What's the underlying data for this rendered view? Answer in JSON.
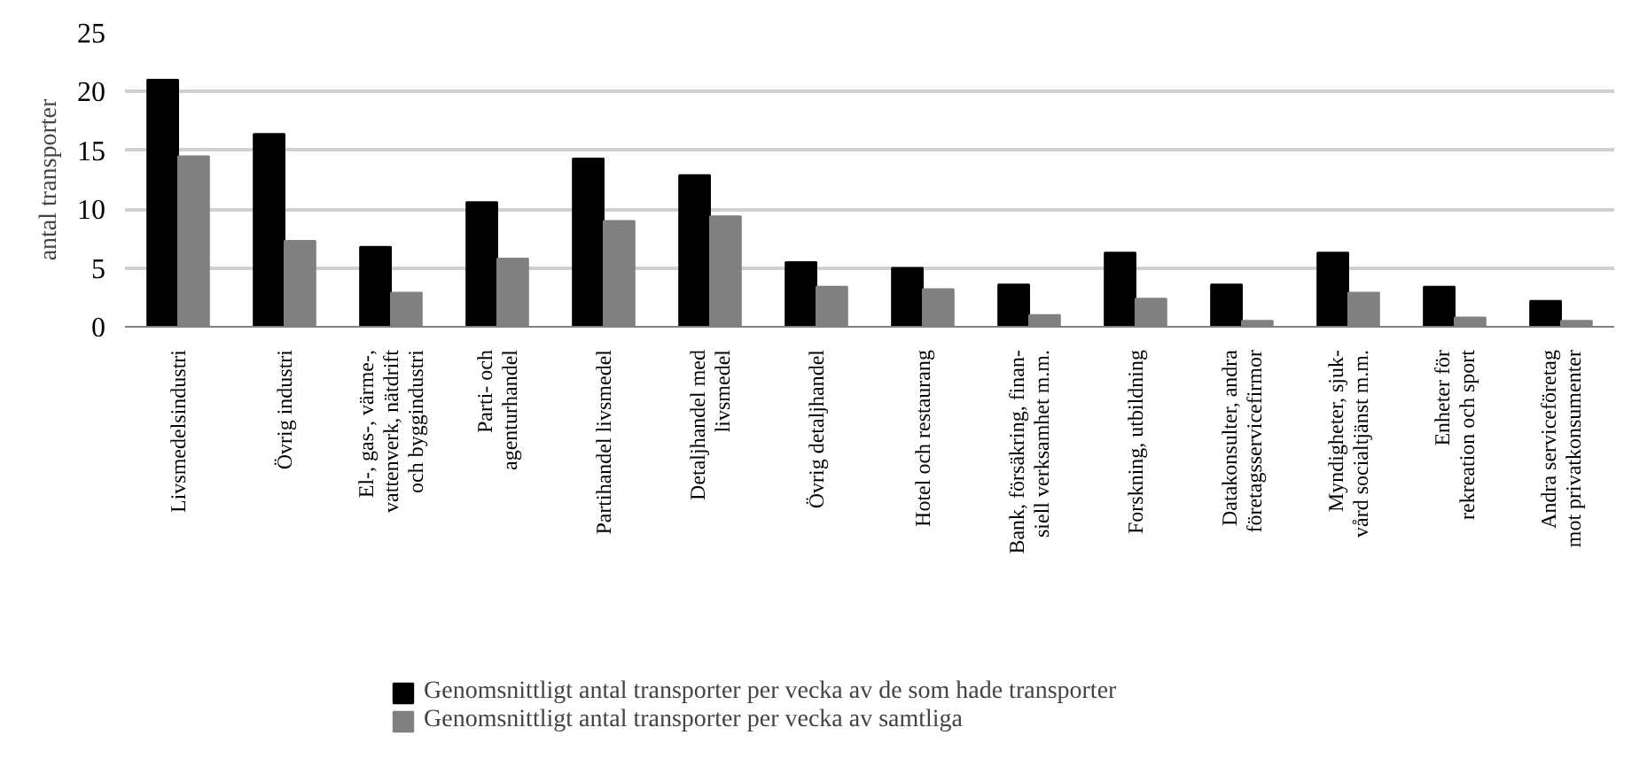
{
  "chart_data": {
    "type": "bar",
    "ylabel": "antal transporter",
    "categories": [
      "Livsmedelsindustri",
      "Övrig industri",
      "El-, gas-, värme-,\nvattenverk, nätdrift\noch byggindustri",
      "Parti- och\nagenturhandel",
      "Partihandel livsmedel",
      "Detaljhandel med\nlivsmedel",
      "Övrig detaljhandel",
      "Hotel och restaurang",
      "Bank, försäkring, finan-\nsiell verksamhet m.m.",
      "Forskning, utbildning",
      "Datakonsulter, andra\nföretagsservicefirmor",
      "Myndigheter, sjuk-\nvård socialtjänst m.m.",
      "Enheter för\nrekreation och sport",
      "Andra serviceföretag\nmot privatkonsumenter"
    ],
    "series": [
      {
        "name": "Genomsnittligt antal transporter per vecka av de som hade transporter",
        "color": "#000000",
        "values": [
          21.0,
          16.4,
          6.8,
          10.6,
          14.3,
          12.9,
          5.5,
          5.0,
          3.6,
          6.3,
          3.6,
          6.3,
          3.4,
          2.2
        ]
      },
      {
        "name": "Genomsnittligt antal transporter per vecka av samtliga",
        "color": "#808080",
        "values": [
          14.5,
          7.3,
          2.9,
          5.8,
          9.0,
          9.4,
          3.4,
          3.2,
          1.0,
          2.4,
          0.5,
          2.9,
          0.8,
          0.5
        ]
      }
    ],
    "ylim": [
      0,
      25
    ],
    "yticks": [
      0,
      5,
      10,
      15,
      20,
      25
    ],
    "grid": "y",
    "legend": "bottom"
  }
}
